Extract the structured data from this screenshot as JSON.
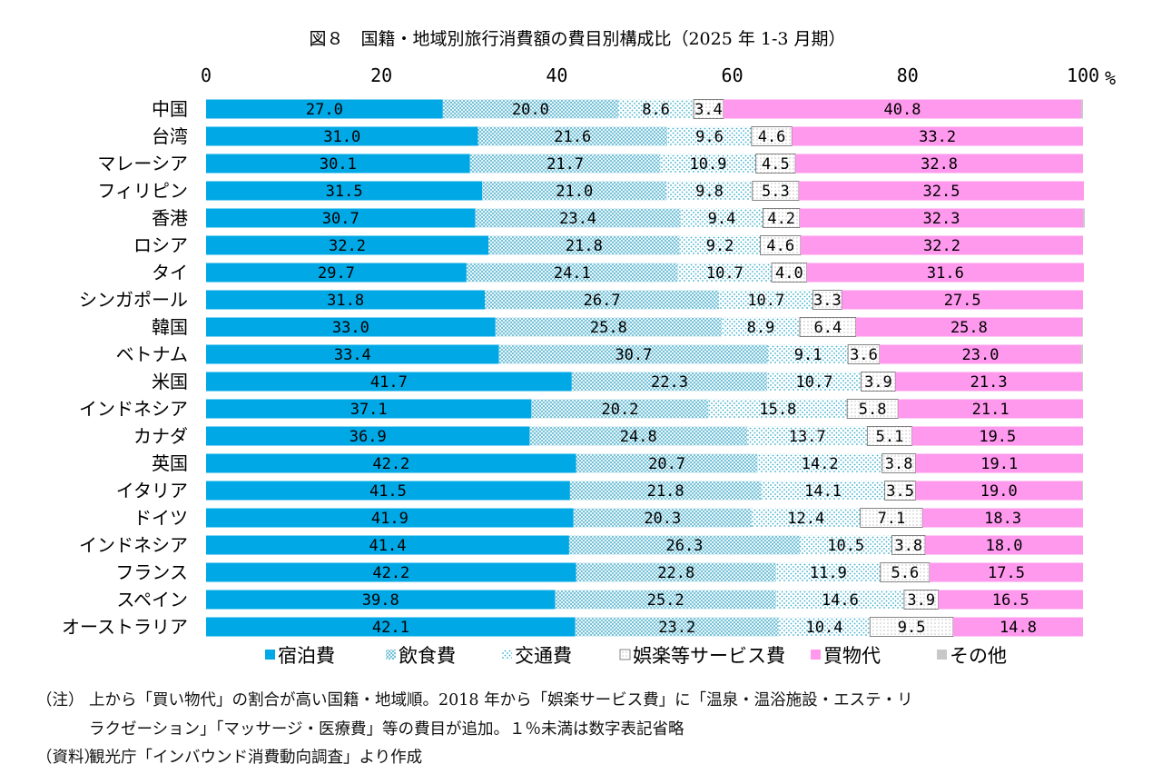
{
  "chart_data": {
    "type": "bar",
    "orientation": "horizontal",
    "stacked": true,
    "title": "図８　国籍・地域別旅行消費額の費目別構成比（2025 年 1-3 月期）",
    "xlim": [
      0,
      100
    ],
    "x_ticks": [
      "0",
      "20",
      "40",
      "60",
      "80",
      "100"
    ],
    "x_unit": "%",
    "legend_position": "bottom",
    "categories": [
      "中国",
      "台湾",
      "マレーシア",
      "フィリピン",
      "香港",
      "ロシア",
      "タイ",
      "シンガポール",
      "韓国",
      "ベトナム",
      "米国",
      "インドネシア",
      "カナダ",
      "英国",
      "イタリア",
      "ドイツ",
      "インドネシア",
      "フランス",
      "スペイン",
      "オーストラリア"
    ],
    "series": [
      {
        "name": "宿泊費",
        "color": "#00a9e6",
        "pattern": "solid",
        "values": [
          27.0,
          31.0,
          30.1,
          31.5,
          30.7,
          32.2,
          29.7,
          31.8,
          33.0,
          33.4,
          41.7,
          37.1,
          36.9,
          42.2,
          41.5,
          41.9,
          41.4,
          42.2,
          39.8,
          42.1
        ],
        "labels": [
          "27.0",
          "31.0",
          "30.1",
          "31.5",
          "30.7",
          "32.2",
          "29.7",
          "31.8",
          "33.0",
          "33.4",
          "41.7",
          "37.1",
          "36.9",
          "42.2",
          "41.5",
          "41.9",
          "41.4",
          "42.2",
          "39.8",
          "42.1"
        ]
      },
      {
        "name": "飲食費",
        "color": "#6fc8d8",
        "pattern": "dense-dots",
        "values": [
          20.0,
          21.6,
          21.7,
          21.0,
          23.4,
          21.8,
          24.1,
          26.7,
          25.8,
          30.7,
          22.3,
          20.2,
          24.8,
          20.7,
          21.8,
          20.3,
          26.3,
          22.8,
          25.2,
          23.2
        ],
        "labels": [
          "20.0",
          "21.6",
          "21.7",
          "21.0",
          "23.4",
          "21.8",
          "24.1",
          "26.7",
          "25.8",
          "30.7",
          "22.3",
          "20.2",
          "24.8",
          "20.7",
          "21.8",
          "20.3",
          "26.3",
          "22.8",
          "25.2",
          "23.2"
        ]
      },
      {
        "name": "交通費",
        "color": "#7cc9d6",
        "pattern": "sparse-dots",
        "values": [
          8.6,
          9.6,
          10.9,
          9.8,
          9.4,
          9.2,
          10.7,
          10.7,
          8.9,
          9.1,
          10.7,
          15.8,
          13.7,
          14.2,
          14.1,
          12.4,
          10.5,
          11.9,
          14.6,
          10.4
        ],
        "labels": [
          "8.6",
          "9.6",
          "10.9",
          "9.8",
          "9.4",
          "9.2",
          "10.7",
          "10.7",
          "8.9",
          "9.1",
          "10.7",
          "15.8",
          "13.7",
          "14.2",
          "14.1",
          "12.4",
          "10.5",
          "11.9",
          "14.6",
          "10.4"
        ]
      },
      {
        "name": "娯楽等サービス費",
        "color": "#555555",
        "pattern": "white-dotted",
        "values": [
          3.4,
          4.6,
          4.5,
          5.3,
          4.2,
          4.6,
          4.0,
          3.3,
          6.4,
          3.6,
          3.9,
          5.8,
          5.1,
          3.8,
          3.5,
          7.1,
          3.8,
          5.6,
          3.9,
          9.5
        ],
        "labels": [
          "3.4",
          "4.6",
          "4.5",
          "5.3",
          "4.2",
          "4.6",
          "4.0",
          "3.3",
          "6.4",
          "3.6",
          "3.9",
          "5.8",
          "5.1",
          "3.8",
          "3.5",
          "7.1",
          "3.8",
          "5.6",
          "3.9",
          "9.5"
        ]
      },
      {
        "name": "買物代",
        "color": "#ff99ee",
        "pattern": "solid",
        "values": [
          40.8,
          33.2,
          32.8,
          32.5,
          32.3,
          32.2,
          31.6,
          27.5,
          25.8,
          23.0,
          21.3,
          21.1,
          19.5,
          19.1,
          19.0,
          18.3,
          18.0,
          17.5,
          16.5,
          14.8
        ],
        "labels": [
          "40.8",
          "33.2",
          "32.8",
          "32.5",
          "32.3",
          "32.2",
          "31.6",
          "27.5",
          "25.8",
          "23.0",
          "21.3",
          "21.1",
          "19.5",
          "19.1",
          "19.0",
          "18.3",
          "18.0",
          "17.5",
          "16.5",
          "14.8"
        ]
      },
      {
        "name": "その他",
        "color": "#c8c8c8",
        "pattern": "solid",
        "values": [
          0.2,
          0.0,
          0.0,
          0.0,
          0.2,
          0.0,
          0.0,
          0.0,
          0.1,
          0.2,
          0.1,
          0.0,
          0.0,
          0.0,
          0.1,
          0.0,
          0.0,
          0.0,
          0.0,
          0.0
        ],
        "labels": [
          "",
          "",
          "",
          "",
          "",
          "",
          "",
          "",
          "",
          "",
          "",
          "",
          "",
          "",
          "",
          "",
          "",
          "",
          "",
          ""
        ]
      }
    ]
  },
  "notes": {
    "note_label": "（注）",
    "note_line1": "上から「買い物代」の割合が高い国籍・地域順。2018 年から「娯楽サービス費」に「温泉・温浴施設・エステ・リ",
    "note_line2": "ラクゼーション」「マッサージ・医療費」等の費目が追加。１％未満は数字表記省略",
    "source_label": "（資料）",
    "source_text": "観光庁「インバウンド消費動向調査」より作成"
  }
}
